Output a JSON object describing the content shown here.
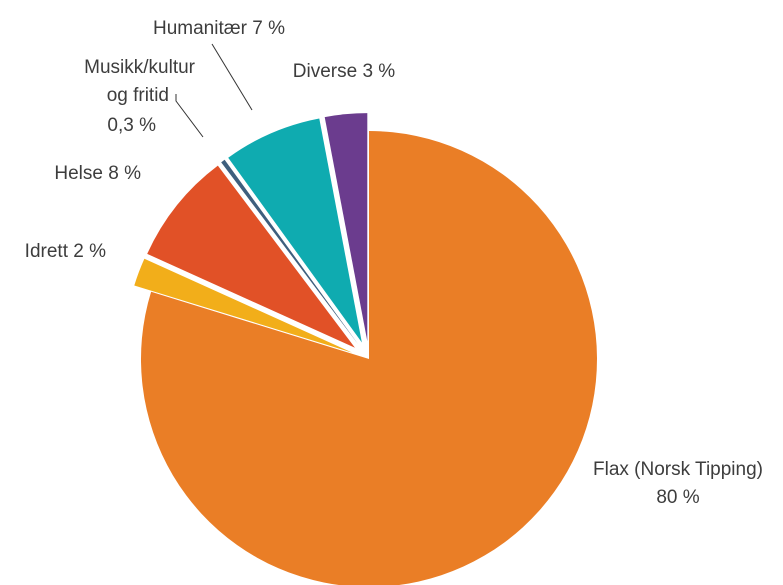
{
  "chart_data": {
    "type": "pie",
    "title": "",
    "start_angle_deg": 0,
    "direction": "clockwise",
    "slices": [
      {
        "name": "Flax (Norsk Tipping)",
        "value": 80,
        "value_label": "80 %",
        "color": "#EA7E26",
        "exploded": false
      },
      {
        "name": "Idrett",
        "value": 2,
        "value_label": "Idrett 2 %",
        "color": "#F2AE1A",
        "exploded": true
      },
      {
        "name": "Helse",
        "value": 8,
        "value_label": "Helse 8 %",
        "color": "#E15127",
        "exploded": true
      },
      {
        "name": "Musikk/kultur og fritid",
        "value": 0.3,
        "value_label": "0,3 %",
        "color": "#3E5F7E",
        "exploded": true
      },
      {
        "name": "Humanitær",
        "value": 7,
        "value_label": "Humanitær 7 %",
        "color": "#0FABB0",
        "exploded": true
      },
      {
        "name": "Diverse",
        "value": 3,
        "value_label": "Diverse 3 %",
        "color": "#6B3C8E",
        "exploded": true
      }
    ],
    "labels": {
      "flax_line1": "Flax (Norsk Tipping)",
      "flax_line2": "80 %",
      "idrett": "Idrett 2 %",
      "helse": "Helse 8 %",
      "musikk_line1": "Musikk/kultur",
      "musikk_line2": "og fritid",
      "musikk_line3": "0,3 %",
      "humanitaer": "Humanitær 7 %",
      "diverse": "Diverse 3 %"
    }
  }
}
